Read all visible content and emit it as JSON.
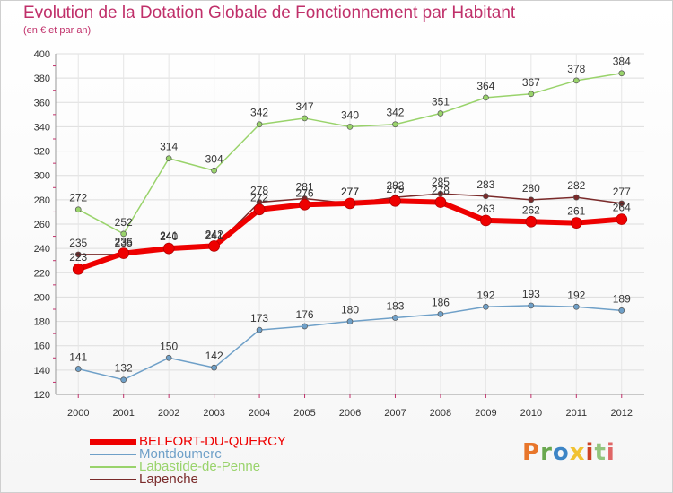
{
  "header": {
    "title": "Evolution de la Dotation Globale de Fonctionnement par Habitant",
    "subtitle": "(en € et par an)"
  },
  "logo": {
    "text": "Proxiti",
    "colors": [
      "#e8762b",
      "#6aa84f",
      "#3d85c6",
      "#f1c232",
      "#cc4125",
      "#93c47d",
      "#e06666"
    ]
  },
  "chart_data": {
    "type": "line",
    "x": [
      2000,
      2001,
      2002,
      2003,
      2004,
      2005,
      2006,
      2007,
      2008,
      2009,
      2010,
      2011,
      2012
    ],
    "ylim": [
      120,
      400
    ],
    "yticks": [
      120,
      140,
      160,
      180,
      200,
      220,
      240,
      260,
      280,
      300,
      320,
      340,
      360,
      380,
      400
    ],
    "grid": true,
    "legend_position": "bottom-left",
    "series": [
      {
        "name": "BELFORT-DU-QUERCY",
        "color": "#ee0000",
        "width": 6,
        "values": [
          223,
          236,
          240,
          242,
          272,
          276,
          277,
          279,
          278,
          263,
          262,
          261,
          264
        ],
        "labels": [
          "223",
          "236",
          "240",
          "242",
          "272",
          "276",
          "277",
          "279",
          "278",
          "263",
          "262",
          "261",
          "264"
        ]
      },
      {
        "name": "Montdoumerc",
        "color": "#6fa0c8",
        "width": 1.5,
        "values": [
          141,
          132,
          150,
          142,
          173,
          176,
          180,
          183,
          186,
          192,
          193,
          192,
          189
        ],
        "labels": [
          "141",
          "132",
          "150",
          "142",
          "173",
          "176",
          "180",
          "183",
          "186",
          "192",
          "193",
          "192",
          "189"
        ]
      },
      {
        "name": "Labastide-de-Penne",
        "color": "#99d36b",
        "width": 1.5,
        "values": [
          272,
          252,
          314,
          304,
          342,
          347,
          340,
          342,
          351,
          364,
          367,
          378,
          384
        ],
        "labels": [
          "272",
          "252",
          "314",
          "304",
          "342",
          "347",
          "340",
          "342",
          "351",
          "364",
          "367",
          "378",
          "384"
        ]
      },
      {
        "name": "Lapenche",
        "color": "#7a2a2a",
        "width": 1.5,
        "values": [
          235,
          235,
          241,
          241,
          278,
          281,
          277,
          282,
          285,
          283,
          280,
          282,
          277
        ],
        "labels": [
          "235",
          "235",
          "241",
          "241",
          "278",
          "281",
          "277",
          "282",
          "285",
          "283",
          "280",
          "282",
          "277"
        ]
      }
    ]
  }
}
